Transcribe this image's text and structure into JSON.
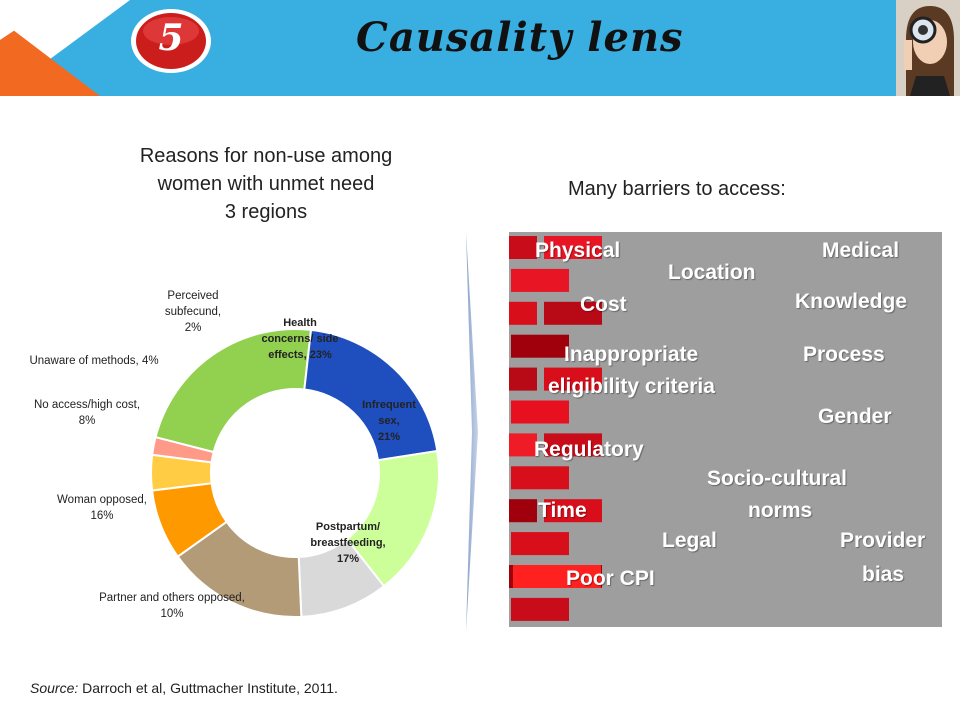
{
  "header": {
    "slide_number": "5",
    "title": "Causality lens"
  },
  "chart_title": {
    "line1": "Reasons for non-use among",
    "line2": "women with unmet need",
    "line3": "3 regions"
  },
  "chart_data": {
    "type": "pie",
    "donut": true,
    "slices": [
      {
        "label": "Health concerns/ side effects, 23%",
        "value": 23,
        "color": "#92d050"
      },
      {
        "label": "Infrequent sex, 21%",
        "value": 21,
        "color": "#1f4fbf"
      },
      {
        "label": "Postpartum/ breastfeeding, 17%",
        "value": 17,
        "color": "#ccff99"
      },
      {
        "label": "Partner and others opposed, 10%",
        "value": 10,
        "color": "#d9d9d9"
      },
      {
        "label": "Woman opposed, 16%",
        "value": 16,
        "color": "#b39b77"
      },
      {
        "label": "No access/high cost, 8%",
        "value": 8,
        "color": "#ff9900"
      },
      {
        "label": "Unaware of methods, 4%",
        "value": 4,
        "color": "#ffcc44"
      },
      {
        "label": "Perceived subfecund, 2%",
        "value": 2,
        "color": "#ff9988"
      }
    ],
    "label_lines": [
      [
        "Health",
        "concerns/ side",
        "effects, 23%"
      ],
      [
        "Infrequent",
        "sex,",
        "21%"
      ],
      [
        "Postpartum/",
        "breastfeeding,",
        "17%"
      ],
      [
        "Partner and others opposed,",
        "10%"
      ],
      [
        "Woman opposed,",
        "16%"
      ],
      [
        "No access/high cost,",
        "8%"
      ],
      [
        "Unaware of methods, 4%"
      ],
      [
        "Perceived",
        "subfecund,",
        "2%"
      ]
    ]
  },
  "wall": {
    "title": "Many barriers to access:",
    "barriers": [
      "Physical",
      "Medical",
      "Location",
      "Cost",
      "Knowledge",
      "Inappropriate",
      "eligibility criteria",
      "Process",
      "Gender",
      "Regulatory",
      "Socio-cultural",
      "norms",
      "Time",
      "Legal",
      "Provider",
      "bias",
      "Poor CPI"
    ],
    "colors": {
      "mortar": "#9e9e9e",
      "brick": "#e8101e",
      "dark": "#a0000c",
      "light": "#ff2020"
    }
  },
  "source": {
    "label": "Source:",
    "text": " Darroch et al, Guttmacher Institute, 2011."
  }
}
